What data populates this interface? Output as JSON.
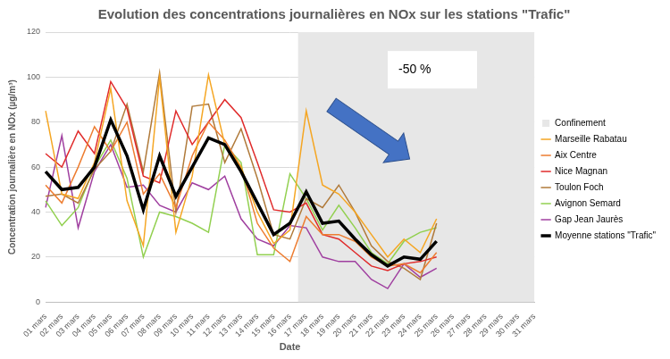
{
  "chart_data": {
    "type": "line",
    "title": "Evolution des concentrations journalières en NOx sur les stations \"Trafic\"",
    "x_label": "Date",
    "y_label": "Concentration journalière en NOx (µg/m³)",
    "categories": [
      "01 mars",
      "02 mars",
      "03 mars",
      "04 mars",
      "05 mars",
      "06 mars",
      "07 mars",
      "08 mars",
      "09 mars",
      "10 mars",
      "11 mars",
      "12 mars",
      "13 mars",
      "14 mars",
      "15 mars",
      "16 mars",
      "17 mars",
      "18 mars",
      "19 mars",
      "20 mars",
      "21 mars",
      "22 mars",
      "23 mars",
      "24 mars",
      "25 mars",
      "26 mars",
      "27 mars",
      "28 mars",
      "29 mars",
      "30 mars",
      "31 mars"
    ],
    "series": [
      {
        "name": "Marseille Rabatau",
        "color": "#f5a623",
        "values": [
          85,
          48,
          46,
          62,
          95,
          45,
          25,
          100,
          31,
          56,
          101,
          70,
          60,
          40,
          26,
          32,
          85,
          52,
          48,
          40,
          30,
          20,
          28,
          22,
          37,
          null,
          null,
          null,
          null,
          null,
          null
        ]
      },
      {
        "name": "Aix Centre",
        "color": "#ed7d31",
        "values": [
          52,
          44,
          60,
          78,
          67,
          80,
          48,
          57,
          42,
          65,
          80,
          72,
          60,
          35,
          24,
          18,
          38,
          30,
          30,
          27,
          20,
          16,
          17,
          13,
          22,
          null,
          null,
          null,
          null,
          null,
          null
        ]
      },
      {
        "name": "Nice Magnan",
        "color": "#e02b2b",
        "values": [
          66,
          60,
          76,
          66,
          98,
          86,
          56,
          53,
          85,
          70,
          80,
          90,
          82,
          62,
          41,
          40,
          44,
          30,
          28,
          22,
          16,
          14,
          17,
          18,
          20,
          null,
          null,
          null,
          null,
          null,
          null
        ]
      },
      {
        "name": "Toulon Foch",
        "color": "#b07a3a",
        "values": [
          47,
          48,
          44,
          59,
          67,
          88,
          58,
          102,
          40,
          87,
          88,
          62,
          77,
          55,
          30,
          28,
          46,
          42,
          52,
          40,
          25,
          18,
          15,
          10,
          35,
          null,
          null,
          null,
          null,
          null,
          null
        ]
      },
      {
        "name": "Avignon Semard",
        "color": "#92d050",
        "values": [
          45,
          34,
          42,
          60,
          72,
          55,
          20,
          40,
          38,
          35,
          31,
          70,
          62,
          21,
          21,
          57,
          46,
          32,
          43,
          33,
          22,
          17,
          27,
          31,
          33,
          null,
          null,
          null,
          null,
          null,
          null
        ]
      },
      {
        "name": "Gap Jean Jaurès",
        "color": "#a040a0",
        "values": [
          42,
          74,
          33,
          58,
          70,
          51,
          52,
          43,
          40,
          53,
          50,
          56,
          37,
          28,
          25,
          34,
          33,
          20,
          18,
          18,
          10,
          6,
          17,
          11,
          15,
          null,
          null,
          null,
          null,
          null,
          null
        ]
      },
      {
        "name": "Moyenne stations \"Trafic\"",
        "color": "#000000",
        "values": [
          58,
          50,
          51,
          60,
          81,
          65,
          41,
          65,
          47,
          60,
          73,
          70,
          58,
          44,
          30,
          35,
          49,
          35,
          36,
          28,
          21,
          16,
          20,
          19,
          27,
          null,
          null,
          null,
          null,
          null,
          null
        ]
      }
    ],
    "shaded_region": {
      "label": "Confinement",
      "start": "17 mars",
      "end": "31 mars",
      "color": "#e7e7e7"
    },
    "annotations": [
      {
        "text": "-50 %"
      }
    ],
    "ylim": [
      0,
      120
    ],
    "yticks": [
      0,
      20,
      40,
      60,
      80,
      100,
      120
    ],
    "grid": true,
    "legend": "right"
  }
}
